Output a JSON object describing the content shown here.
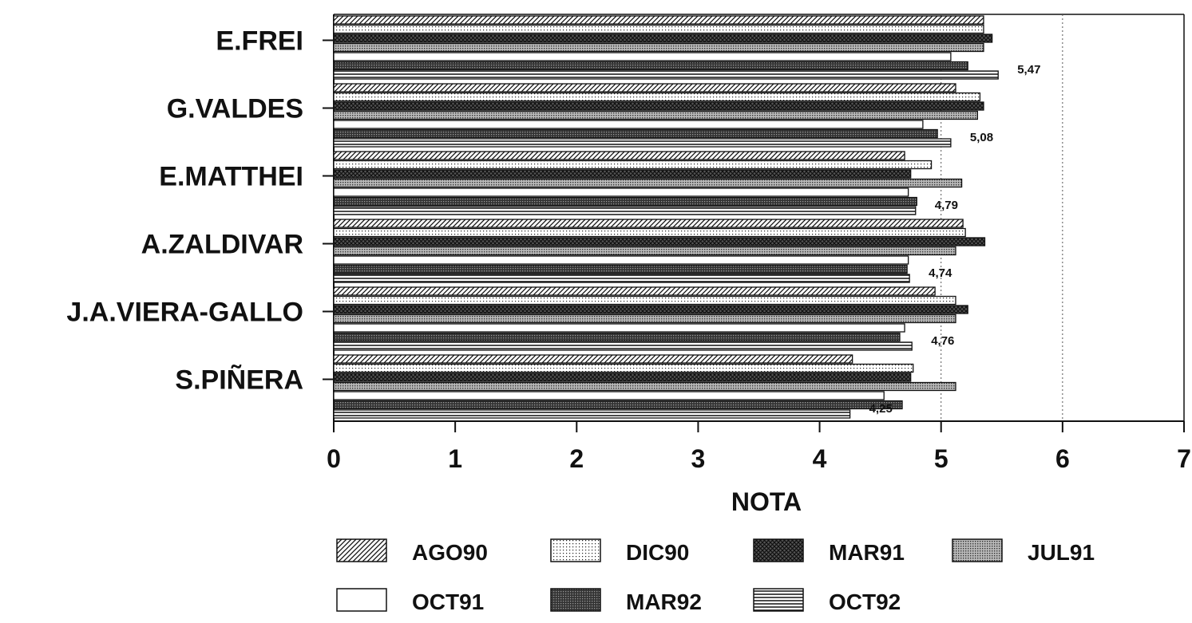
{
  "chart_data": {
    "type": "bar",
    "orientation": "horizontal",
    "categories": [
      "E.FREI",
      "G.VALDES",
      "E.MATTHEI",
      "A.ZALDIVAR",
      "J.A.VIERA-GALLO",
      "S.PIÑERA"
    ],
    "series": [
      {
        "name": "AGO90",
        "pattern": "diagonal",
        "values": [
          5.35,
          5.12,
          4.7,
          5.18,
          4.95,
          4.27
        ]
      },
      {
        "name": "DIC90",
        "pattern": "dots",
        "values": [
          5.35,
          5.32,
          4.92,
          5.2,
          5.12,
          4.77
        ]
      },
      {
        "name": "MAR91",
        "pattern": "crosshatch",
        "values": [
          5.42,
          5.35,
          4.75,
          5.36,
          5.22,
          4.75
        ]
      },
      {
        "name": "JUL91",
        "pattern": "dense-dots",
        "values": [
          5.35,
          5.3,
          5.17,
          5.12,
          5.12,
          5.12
        ]
      },
      {
        "name": "OCT91",
        "pattern": "empty",
        "values": [
          5.08,
          4.85,
          4.73,
          4.73,
          4.7,
          4.53
        ]
      },
      {
        "name": "MAR92",
        "pattern": "dense-crosshatch",
        "values": [
          5.22,
          4.97,
          4.8,
          4.72,
          4.66,
          4.68
        ]
      },
      {
        "name": "OCT92",
        "pattern": "horizontal",
        "values": [
          5.47,
          5.08,
          4.79,
          4.74,
          4.76,
          4.25
        ]
      }
    ],
    "data_labels": [
      "5,47",
      "5,08",
      "4,79",
      "4,74",
      "4,76",
      "4,25"
    ],
    "xlabel": "NOTA",
    "xlim": [
      0,
      7
    ],
    "xticks": [
      "0",
      "1",
      "2",
      "3",
      "4",
      "5",
      "6",
      "7"
    ],
    "grid": "vertical dotted lines at 5 and 6",
    "legend_position": "bottom"
  }
}
